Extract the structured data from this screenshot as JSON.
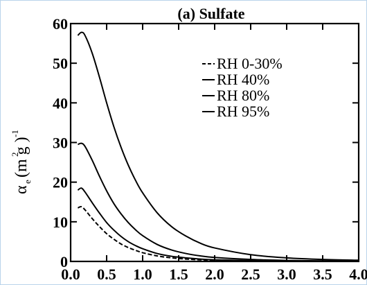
{
  "chart_data": {
    "type": "line",
    "title": "(a) Sulfate",
    "xlabel": "",
    "ylabel": {
      "symbol": "α",
      "subscript": "e",
      "units": "(m g )",
      "exp_2": "2",
      "exp_neg1": "-1"
    },
    "xlim": [
      0,
      4.0
    ],
    "ylim": [
      0,
      60
    ],
    "x_ticks": [
      "0.0",
      "0.5",
      "1.0",
      "1.5",
      "2.0",
      "2.5",
      "3.0",
      "3.5",
      "4.0"
    ],
    "x_tick_values": [
      0,
      0.5,
      1.0,
      1.5,
      2.0,
      2.5,
      3.0,
      3.5,
      4.0
    ],
    "y_ticks": [
      "0",
      "10",
      "20",
      "30",
      "40",
      "50",
      "60"
    ],
    "y_tick_values": [
      0,
      10,
      20,
      30,
      40,
      50,
      60
    ],
    "legend_position": "top-right",
    "series": [
      {
        "name": "RH 0-30%",
        "dash": "dashed",
        "x": [
          0.1,
          0.15,
          0.2,
          0.3,
          0.4,
          0.5,
          0.6,
          0.7,
          0.8,
          0.9,
          1.0,
          1.2,
          1.4,
          1.6,
          1.8,
          2.0,
          2.5,
          3.0,
          3.5,
          4.0
        ],
        "y": [
          13.5,
          13.8,
          13.0,
          10.8,
          8.8,
          7.0,
          5.6,
          4.4,
          3.5,
          2.8,
          2.2,
          1.4,
          0.9,
          0.6,
          0.4,
          0.3,
          0.15,
          0.08,
          0.05,
          0.03
        ]
      },
      {
        "name": "RH 40%",
        "dash": "solid",
        "x": [
          0.1,
          0.15,
          0.2,
          0.3,
          0.4,
          0.5,
          0.6,
          0.7,
          0.8,
          0.9,
          1.0,
          1.2,
          1.4,
          1.6,
          1.8,
          2.0,
          2.5,
          3.0,
          3.5,
          4.0
        ],
        "y": [
          18.0,
          18.5,
          17.5,
          14.8,
          12.2,
          9.8,
          7.9,
          6.3,
          5.0,
          4.0,
          3.2,
          2.0,
          1.3,
          0.9,
          0.6,
          0.4,
          0.2,
          0.1,
          0.06,
          0.04
        ]
      },
      {
        "name": "RH 80%",
        "dash": "solid",
        "x": [
          0.1,
          0.15,
          0.2,
          0.3,
          0.4,
          0.5,
          0.6,
          0.7,
          0.8,
          0.9,
          1.0,
          1.2,
          1.4,
          1.6,
          1.8,
          2.0,
          2.5,
          3.0,
          3.5,
          4.0
        ],
        "y": [
          29.5,
          29.8,
          29.0,
          25.5,
          21.5,
          17.8,
          14.6,
          12.0,
          9.8,
          8.0,
          6.5,
          4.3,
          2.9,
          2.0,
          1.4,
          1.0,
          0.5,
          0.25,
          0.15,
          0.1
        ]
      },
      {
        "name": "RH 95%",
        "dash": "solid",
        "x": [
          0.1,
          0.15,
          0.2,
          0.3,
          0.4,
          0.5,
          0.6,
          0.7,
          0.8,
          0.9,
          1.0,
          1.2,
          1.4,
          1.6,
          1.8,
          2.0,
          2.5,
          3.0,
          3.5,
          4.0
        ],
        "y": [
          57.0,
          57.8,
          57.0,
          52.5,
          46.5,
          40.0,
          34.0,
          28.8,
          24.3,
          20.5,
          17.3,
          12.3,
          8.8,
          6.4,
          4.6,
          3.4,
          1.7,
          0.9,
          0.5,
          0.3
        ]
      }
    ]
  }
}
